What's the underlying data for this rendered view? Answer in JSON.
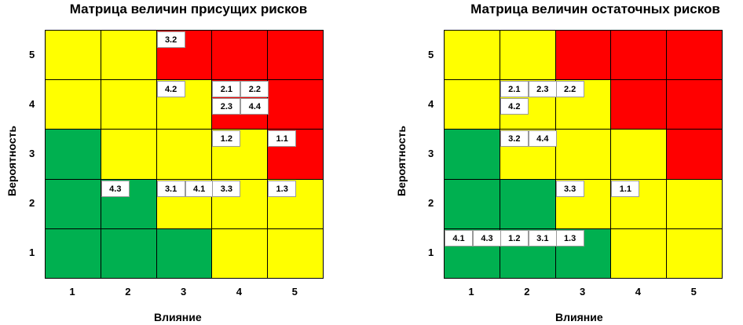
{
  "colors": {
    "red": "#ff0000",
    "yellow": "#ffff00",
    "green": "#00b050"
  },
  "chart_data": [
    {
      "type": "heatmap",
      "title": "Матрица величин присущих рисков",
      "xlabel": "Влияние",
      "ylabel": "Вероятность",
      "x_ticks": [
        "1",
        "2",
        "3",
        "4",
        "5"
      ],
      "y_ticks": [
        "1",
        "2",
        "3",
        "4",
        "5"
      ],
      "grid_colors_top_to_bottom": [
        [
          "yellow",
          "yellow",
          "red",
          "red",
          "red"
        ],
        [
          "yellow",
          "yellow",
          "yellow",
          "red",
          "red"
        ],
        [
          "green",
          "yellow",
          "yellow",
          "yellow",
          "red"
        ],
        [
          "green",
          "green",
          "yellow",
          "yellow",
          "yellow"
        ],
        [
          "green",
          "green",
          "green",
          "yellow",
          "yellow"
        ]
      ],
      "risks": [
        {
          "label": "3.2",
          "impact": 3,
          "probability": 5,
          "slot": 0,
          "row": 0
        },
        {
          "label": "4.2",
          "impact": 3,
          "probability": 4,
          "slot": 0,
          "row": 0
        },
        {
          "label": "2.1",
          "impact": 4,
          "probability": 4,
          "slot": 0,
          "row": 0
        },
        {
          "label": "2.2",
          "impact": 4,
          "probability": 4,
          "slot": 1,
          "row": 0
        },
        {
          "label": "2.3",
          "impact": 4,
          "probability": 4,
          "slot": 0,
          "row": 1
        },
        {
          "label": "4.4",
          "impact": 4,
          "probability": 4,
          "slot": 1,
          "row": 1
        },
        {
          "label": "1.2",
          "impact": 4,
          "probability": 3,
          "slot": 0,
          "row": 0
        },
        {
          "label": "1.1",
          "impact": 5,
          "probability": 3,
          "slot": 0,
          "row": 0
        },
        {
          "label": "4.3",
          "impact": 2,
          "probability": 2,
          "slot": 0,
          "row": 0
        },
        {
          "label": "3.1",
          "impact": 3,
          "probability": 2,
          "slot": 0,
          "row": 0
        },
        {
          "label": "4.1",
          "impact": 3,
          "probability": 2,
          "slot": 1,
          "row": 0
        },
        {
          "label": "3.3",
          "impact": 4,
          "probability": 2,
          "slot": 0,
          "row": 0
        },
        {
          "label": "1.3",
          "impact": 5,
          "probability": 2,
          "slot": 0,
          "row": 0
        }
      ]
    },
    {
      "type": "heatmap",
      "title": "Матрица величин остаточных рисков",
      "xlabel": "Влияние",
      "ylabel": "Вероятность",
      "x_ticks": [
        "1",
        "2",
        "3",
        "4",
        "5"
      ],
      "y_ticks": [
        "1",
        "2",
        "3",
        "4",
        "5"
      ],
      "grid_colors_top_to_bottom": [
        [
          "yellow",
          "yellow",
          "red",
          "red",
          "red"
        ],
        [
          "yellow",
          "yellow",
          "yellow",
          "red",
          "red"
        ],
        [
          "green",
          "yellow",
          "yellow",
          "yellow",
          "red"
        ],
        [
          "green",
          "green",
          "yellow",
          "yellow",
          "yellow"
        ],
        [
          "green",
          "green",
          "green",
          "yellow",
          "yellow"
        ]
      ],
      "risks": [
        {
          "label": "2.1",
          "impact": 2,
          "probability": 4,
          "slot": 0,
          "row": 0
        },
        {
          "label": "2.3",
          "impact": 2,
          "probability": 4,
          "slot": 1,
          "row": 0
        },
        {
          "label": "2.2",
          "impact": 3,
          "probability": 4,
          "slot": 0,
          "row": 0
        },
        {
          "label": "4.2",
          "impact": 2,
          "probability": 4,
          "slot": 0,
          "row": 1
        },
        {
          "label": "3.2",
          "impact": 2,
          "probability": 3,
          "slot": 0,
          "row": 0
        },
        {
          "label": "4.4",
          "impact": 2,
          "probability": 3,
          "slot": 1,
          "row": 0
        },
        {
          "label": "3.3",
          "impact": 3,
          "probability": 2,
          "slot": 0,
          "row": 0
        },
        {
          "label": "1.1",
          "impact": 4,
          "probability": 2,
          "slot": 0,
          "row": 0
        },
        {
          "label": "4.1",
          "impact": 1,
          "probability": 1,
          "slot": 0,
          "row": 0
        },
        {
          "label": "4.3",
          "impact": 1,
          "probability": 1,
          "slot": 1,
          "row": 0
        },
        {
          "label": "1.2",
          "impact": 2,
          "probability": 1,
          "slot": 0,
          "row": 0
        },
        {
          "label": "3.1",
          "impact": 2,
          "probability": 1,
          "slot": 1,
          "row": 0
        },
        {
          "label": "1.3",
          "impact": 3,
          "probability": 1,
          "slot": 0,
          "row": 0
        }
      ]
    }
  ]
}
